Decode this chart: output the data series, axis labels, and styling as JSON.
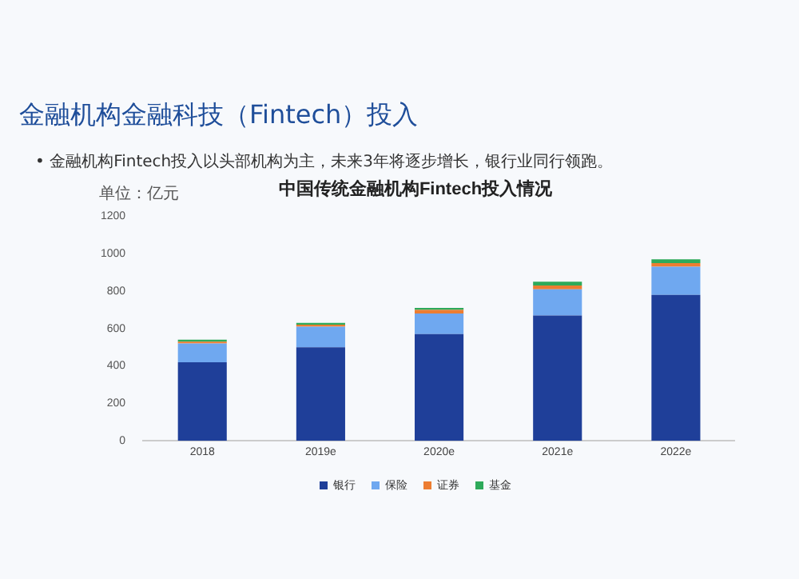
{
  "chart_data": {
    "type": "bar",
    "title": "中国传统金融机构Fintech投入情况",
    "ylabel": "单位：亿元",
    "annotations": [
      "金融机构金融科技（Fintech）投入",
      "•  金融机构Fintech投入以头部机构为主，未来3年将逐步增长，银行业同行领跑。"
    ],
    "categories": [
      "2018",
      "2019e",
      "2020e",
      "2021e",
      "2022e"
    ],
    "stacked": true,
    "series": [
      {
        "name": "银行",
        "color": "#1f3f99",
        "values": [
          420,
          500,
          570,
          670,
          780
        ]
      },
      {
        "name": "保险",
        "color": "#6fa8f0",
        "values": [
          100,
          110,
          110,
          140,
          150
        ]
      },
      {
        "name": "证券",
        "color": "#ed7d31",
        "values": [
          10,
          10,
          20,
          20,
          20
        ]
      },
      {
        "name": "基金",
        "color": "#2eaa5a",
        "values": [
          10,
          10,
          10,
          20,
          20
        ]
      }
    ],
    "ylim": [
      0,
      1200
    ],
    "yticks": [
      0,
      200,
      400,
      600,
      800,
      1000,
      1200
    ],
    "grid": false,
    "legend": "bottom"
  }
}
